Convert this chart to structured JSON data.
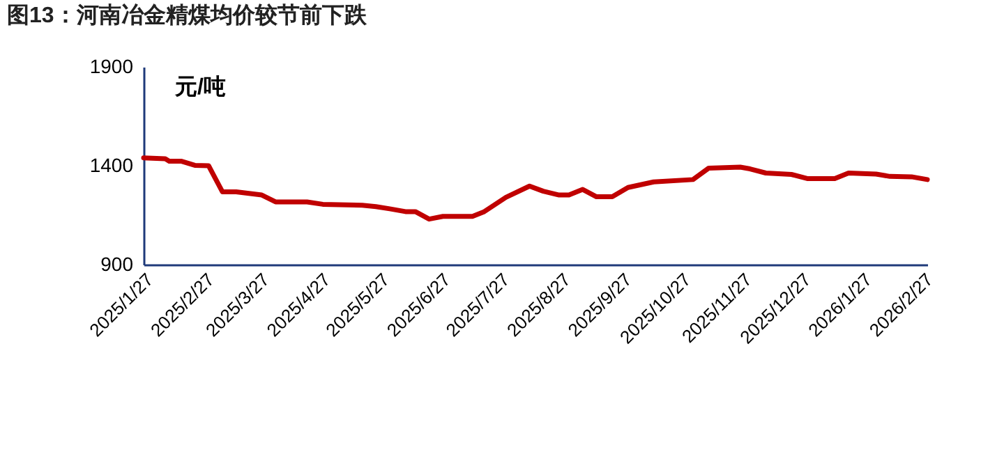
{
  "chart_data": {
    "type": "line",
    "title": "图13：河南冶金精煤均价较节前下跌",
    "ylabel": "元/吨",
    "x": [
      "2025-01-27",
      "2025-02-07",
      "2025-02-09",
      "2025-02-15",
      "2025-02-22",
      "2025-03-01",
      "2025-03-08",
      "2025-03-15",
      "2025-03-28",
      "2025-04-04",
      "2025-04-20",
      "2025-04-28",
      "2025-05-18",
      "2025-05-25",
      "2025-06-01",
      "2025-06-09",
      "2025-06-14",
      "2025-06-21",
      "2025-06-28",
      "2025-07-13",
      "2025-07-19",
      "2025-07-30",
      "2025-08-11",
      "2025-08-18",
      "2025-08-26",
      "2025-08-31",
      "2025-09-07",
      "2025-09-14",
      "2025-09-22",
      "2025-09-30",
      "2025-10-13",
      "2025-11-02",
      "2025-11-10",
      "2025-11-26",
      "2025-12-01",
      "2025-12-09",
      "2025-12-22",
      "2025-12-30",
      "2026-01-13",
      "2026-01-20",
      "2026-02-03",
      "2026-02-10",
      "2026-02-21",
      "2026-03-01"
    ],
    "series": [
      {
        "color": "#c00000",
        "values": [
          1440,
          1435,
          1423,
          1423,
          1402,
          1400,
          1268,
          1268,
          1252,
          1217,
          1217,
          1205,
          1200,
          1193,
          1182,
          1168,
          1168,
          1130,
          1144,
          1144,
          1168,
          1240,
          1297,
          1271,
          1252,
          1252,
          1280,
          1243,
          1243,
          1290,
          1318,
          1330,
          1388,
          1393,
          1384,
          1363,
          1356,
          1335,
          1335,
          1363,
          1358,
          1346,
          1344,
          1330
        ]
      }
    ],
    "xlim": [
      "2025-01-27",
      "2026-03-01"
    ],
    "xticks": [
      {
        "value": "2025-01-27",
        "label": "2025/1/27"
      },
      {
        "value": "2025-02-27",
        "label": "2025/2/27"
      },
      {
        "value": "2025-03-27",
        "label": "2025/3/27"
      },
      {
        "value": "2025-04-27",
        "label": "2025/4/27"
      },
      {
        "value": "2025-05-27",
        "label": "2025/5/27"
      },
      {
        "value": "2025-06-27",
        "label": "2025/6/27"
      },
      {
        "value": "2025-07-27",
        "label": "2025/7/27"
      },
      {
        "value": "2025-08-27",
        "label": "2025/8/27"
      },
      {
        "value": "2025-09-27",
        "label": "2025/9/27"
      },
      {
        "value": "2025-10-27",
        "label": "2025/10/27"
      },
      {
        "value": "2025-11-27",
        "label": "2025/11/27"
      },
      {
        "value": "2025-12-27",
        "label": "2025/12/27"
      },
      {
        "value": "2026-01-27",
        "label": "2026/1/27"
      },
      {
        "value": "2026-02-27",
        "label": "2026/2/27"
      }
    ],
    "ylim": [
      900,
      1900
    ],
    "yticks": [
      900,
      1400,
      1900
    ],
    "grid": false,
    "legend": false,
    "marker": "none",
    "line_style": "solid"
  }
}
